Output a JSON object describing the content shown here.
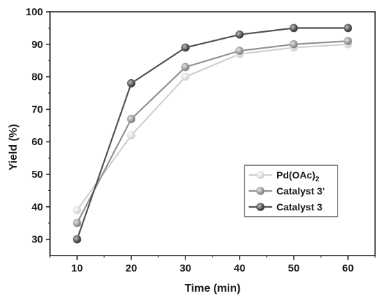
{
  "chart_data": {
    "type": "line",
    "xlabel": "Time (min)",
    "ylabel": "Yield (%)",
    "x": [
      10,
      20,
      30,
      40,
      50,
      60
    ],
    "xlim": [
      5,
      65
    ],
    "ylim": [
      25,
      100
    ],
    "xticks": [
      10,
      20,
      30,
      40,
      50,
      60
    ],
    "yticks": [
      30,
      40,
      50,
      60,
      70,
      80,
      90,
      100
    ],
    "grid": false,
    "legend_position": "lower-right",
    "series": [
      {
        "name": "Pd(OAc)",
        "name_subscript": "2",
        "values": [
          39,
          62,
          80,
          87,
          89,
          90
        ],
        "color": "#d0d0d0",
        "marker_color": "#dcdcdc"
      },
      {
        "name": "Catalyst 3'",
        "values": [
          35,
          67,
          83,
          88,
          90,
          91
        ],
        "color": "#909090",
        "marker_color": "#9a9a9a"
      },
      {
        "name": "Catalyst 3",
        "values": [
          30,
          78,
          89,
          93,
          95,
          95
        ],
        "color": "#505050",
        "marker_color": "#4a4a4a"
      }
    ]
  }
}
